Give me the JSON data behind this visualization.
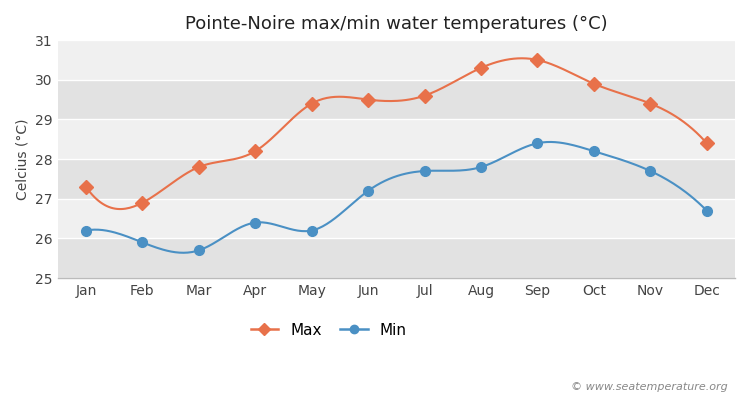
{
  "title": "Pointe-Noire max/min water temperatures (°C)",
  "ylabel": "Celcius (°C)",
  "months": [
    "Jan",
    "Feb",
    "Mar",
    "Apr",
    "May",
    "Jun",
    "Jul",
    "Aug",
    "Sep",
    "Oct",
    "Nov",
    "Dec"
  ],
  "max_temps": [
    27.3,
    26.9,
    27.8,
    28.2,
    29.4,
    29.5,
    29.6,
    30.3,
    30.5,
    29.9,
    29.4,
    28.4
  ],
  "min_temps": [
    26.2,
    25.9,
    25.7,
    26.4,
    26.2,
    27.2,
    27.7,
    27.8,
    28.4,
    28.2,
    27.7,
    26.7
  ],
  "max_color": "#e8714a",
  "min_color": "#4a90c4",
  "bg_color": "#ffffff",
  "plot_bg_light": "#f0f0f0",
  "plot_bg_dark": "#e2e2e2",
  "grid_color": "#ffffff",
  "ylim": [
    25,
    31
  ],
  "yticks": [
    25,
    26,
    27,
    28,
    29,
    30,
    31
  ],
  "legend_labels": [
    "Max",
    "Min"
  ],
  "watermark": "© www.seatemperature.org",
  "title_fontsize": 13,
  "axis_fontsize": 10,
  "tick_fontsize": 10,
  "legend_fontsize": 11,
  "linewidth": 1.5,
  "markersize_max": 7,
  "markersize_min": 7
}
